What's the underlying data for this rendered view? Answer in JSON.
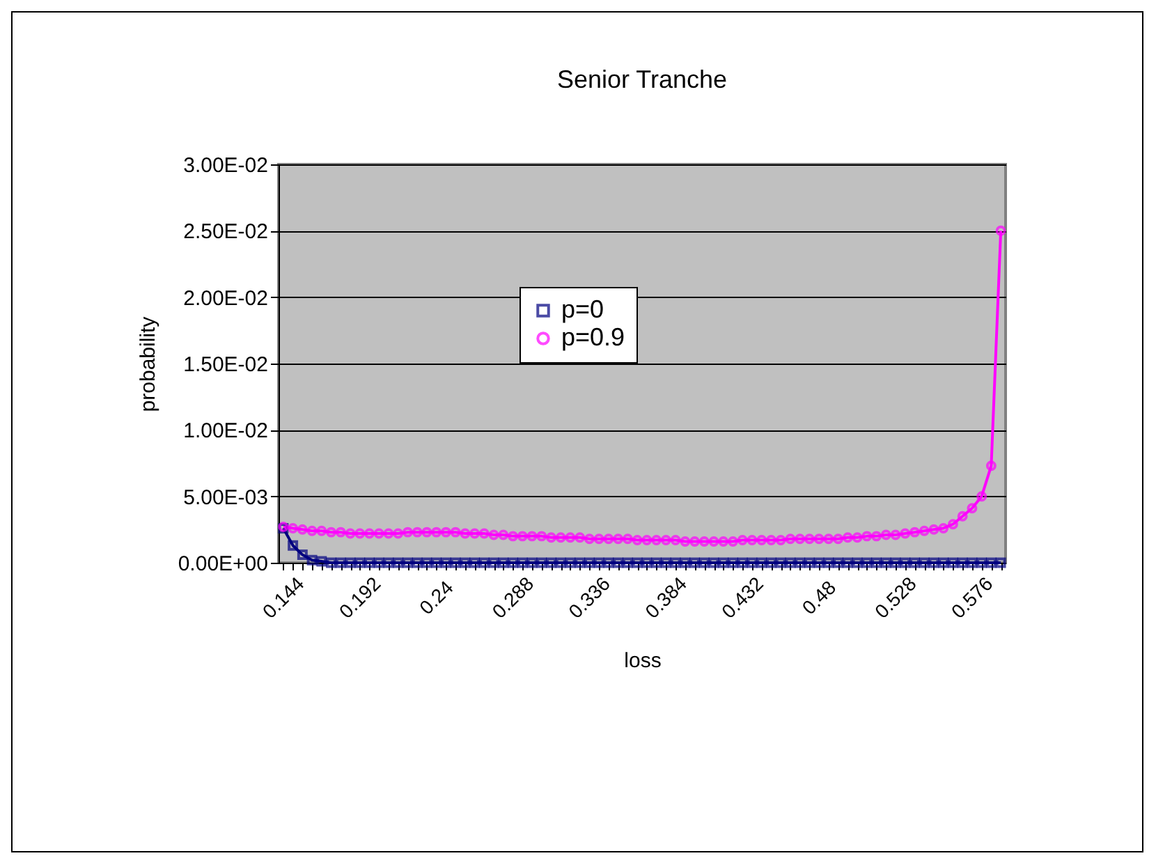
{
  "chart_data": {
    "type": "line",
    "title": "Senior Tranche",
    "xlabel": "loss",
    "ylabel": "probability",
    "categories": [
      "0.144",
      null,
      null,
      null,
      null,
      null,
      null,
      null,
      "0.192",
      null,
      null,
      null,
      null,
      null,
      null,
      null,
      "0.24",
      null,
      null,
      null,
      null,
      null,
      null,
      null,
      "0.288",
      null,
      null,
      null,
      null,
      null,
      null,
      null,
      "0.336",
      null,
      null,
      null,
      null,
      null,
      null,
      null,
      "0.384",
      null,
      null,
      null,
      null,
      null,
      null,
      null,
      "0.432",
      null,
      null,
      null,
      null,
      null,
      null,
      null,
      "0.48",
      null,
      null,
      null,
      null,
      null,
      null,
      null,
      "0.528",
      null,
      null,
      null,
      null,
      null,
      null,
      null,
      "0.576",
      null,
      null,
      null
    ],
    "series": [
      {
        "name": "p=0",
        "color": "#000080",
        "marker": "square",
        "values": [
          0.0026,
          0.0013,
          0.0006,
          0.0002,
          0.0001,
          0,
          0,
          0,
          0,
          0,
          0,
          0,
          0,
          0,
          0,
          0,
          0,
          0,
          0,
          0,
          0,
          0,
          0,
          0,
          0,
          0,
          0,
          0,
          0,
          0,
          0,
          0,
          0,
          0,
          0,
          0,
          0,
          0,
          0,
          0,
          0,
          0,
          0,
          0,
          0,
          0,
          0,
          0,
          0,
          0,
          0,
          0,
          0,
          0,
          0,
          0,
          0,
          0,
          0,
          0,
          0,
          0,
          0,
          0,
          0,
          0,
          0,
          0,
          0,
          0,
          0,
          0,
          0,
          0,
          0,
          0
        ]
      },
      {
        "name": "p=0.9",
        "color": "#ff00ff",
        "marker": "circle",
        "values": [
          0.0027,
          0.0026,
          0.0025,
          0.0024,
          0.0024,
          0.0023,
          0.0023,
          0.0022,
          0.0022,
          0.0022,
          0.0022,
          0.0022,
          0.0022,
          0.0023,
          0.0023,
          0.0023,
          0.0023,
          0.0023,
          0.0023,
          0.0022,
          0.0022,
          0.0022,
          0.0021,
          0.0021,
          0.002,
          0.002,
          0.002,
          0.002,
          0.0019,
          0.0019,
          0.0019,
          0.0019,
          0.0018,
          0.0018,
          0.0018,
          0.0018,
          0.0018,
          0.0017,
          0.0017,
          0.0017,
          0.0017,
          0.0017,
          0.0016,
          0.0016,
          0.0016,
          0.0016,
          0.0016,
          0.0016,
          0.0017,
          0.0017,
          0.0017,
          0.0017,
          0.0017,
          0.0018,
          0.0018,
          0.0018,
          0.0018,
          0.0018,
          0.0018,
          0.0019,
          0.0019,
          0.002,
          0.002,
          0.0021,
          0.0021,
          0.0022,
          0.0023,
          0.0024,
          0.0025,
          0.0026,
          0.0029,
          0.0035,
          0.0041,
          0.005,
          0.0073,
          0.025
        ]
      }
    ],
    "ylim": [
      0,
      0.03
    ],
    "yticks": [
      {
        "value": 0,
        "label": "0.00E+00"
      },
      {
        "value": 0.005,
        "label": "5.00E-03"
      },
      {
        "value": 0.01,
        "label": "1.00E-02"
      },
      {
        "value": 0.015,
        "label": "1.50E-02"
      },
      {
        "value": 0.02,
        "label": "2.00E-02"
      },
      {
        "value": 0.025,
        "label": "2.50E-02"
      },
      {
        "value": 0.03,
        "label": "3.00E-02"
      }
    ],
    "grid": "y",
    "legend": "top",
    "line_style": "solid"
  }
}
